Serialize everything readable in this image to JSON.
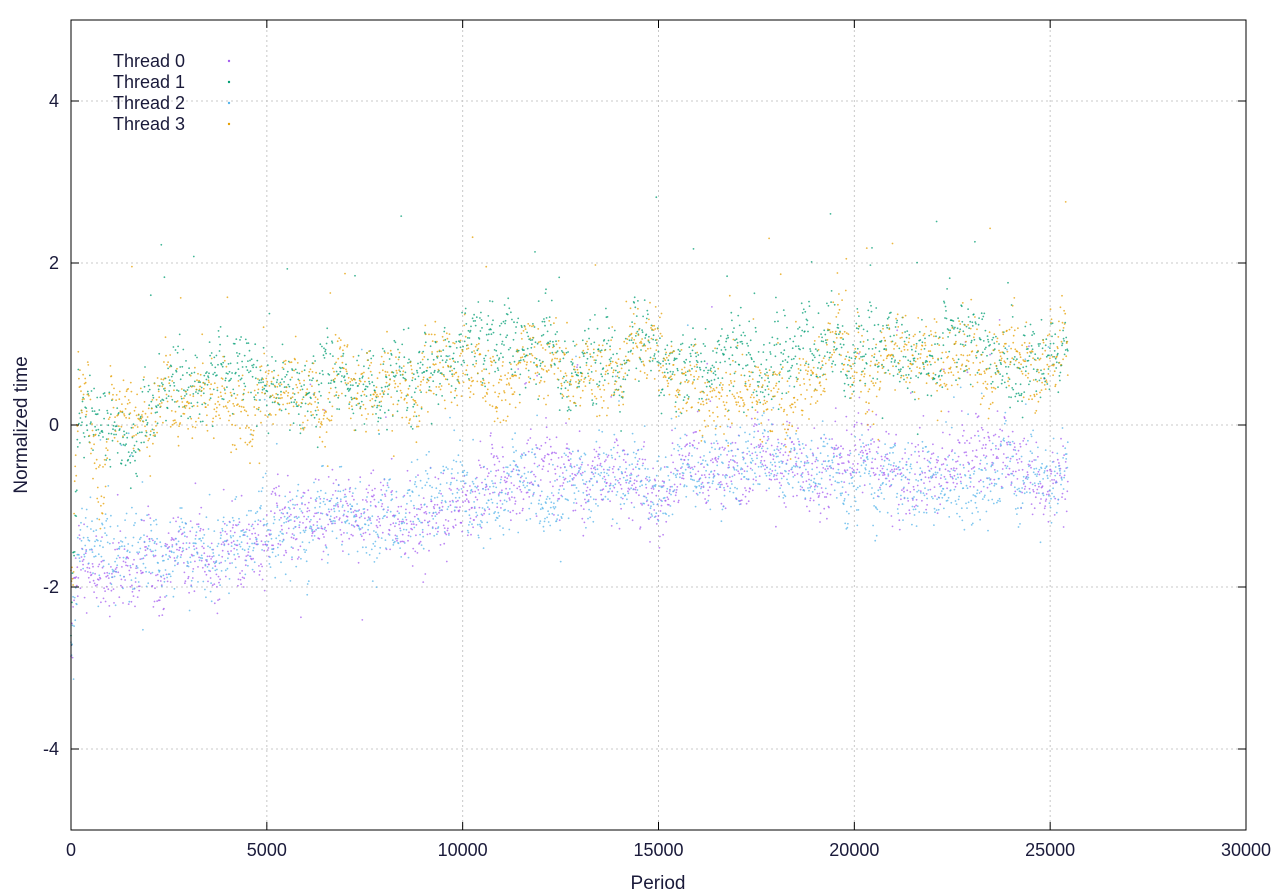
{
  "chart_data": {
    "type": "scatter",
    "title": "",
    "xlabel": "Period",
    "ylabel": "Normalized time",
    "xlim": [
      0,
      30000
    ],
    "ylim": [
      -5,
      5
    ],
    "xticks": [
      0,
      5000,
      10000,
      15000,
      20000,
      25000,
      30000
    ],
    "xtick_labels": [
      "0",
      "5000",
      "10000",
      "15000",
      "20000",
      "25000",
      "30000"
    ],
    "yticks": [
      -4,
      -2,
      0,
      2,
      4
    ],
    "ytick_labels": [
      "-4",
      "-2",
      "0",
      "2",
      "4"
    ],
    "grid": true,
    "legend_position": "top-left",
    "x_extent": [
      0,
      25450
    ],
    "series": [
      {
        "name": "Thread 0",
        "color": "#a55ef0",
        "trend": [
          [
            0,
            -2.8
          ],
          [
            100,
            -1.9
          ],
          [
            500,
            -1.8
          ],
          [
            1000,
            -1.9
          ],
          [
            2000,
            -1.7
          ],
          [
            3000,
            -1.5
          ],
          [
            4000,
            -1.5
          ],
          [
            5000,
            -1.3
          ],
          [
            6000,
            -1.2
          ],
          [
            7000,
            -1.2
          ],
          [
            8000,
            -1.0
          ],
          [
            9000,
            -1.2
          ],
          [
            10000,
            -1.0
          ],
          [
            11000,
            -0.8
          ],
          [
            12000,
            -0.7
          ],
          [
            13000,
            -0.6
          ],
          [
            14000,
            -0.7
          ],
          [
            15000,
            -0.9
          ],
          [
            16000,
            -0.4
          ],
          [
            17000,
            -0.6
          ],
          [
            18000,
            -0.4
          ],
          [
            19000,
            -0.5
          ],
          [
            20000,
            -0.2
          ],
          [
            21000,
            -0.6
          ],
          [
            22000,
            -0.4
          ],
          [
            23000,
            -0.4
          ],
          [
            24000,
            -0.3
          ],
          [
            25000,
            -0.7
          ],
          [
            25450,
            -0.7
          ]
        ]
      },
      {
        "name": "Thread 1",
        "color": "#009e73",
        "trend": [
          [
            0,
            -2.5
          ],
          [
            200,
            0.0
          ],
          [
            500,
            0.3
          ],
          [
            1000,
            -0.1
          ],
          [
            1500,
            -0.4
          ],
          [
            2000,
            0.2
          ],
          [
            2500,
            0.6
          ],
          [
            3000,
            0.4
          ],
          [
            4000,
            0.6
          ],
          [
            5000,
            0.5
          ],
          [
            6000,
            0.4
          ],
          [
            7000,
            0.6
          ],
          [
            8000,
            0.5
          ],
          [
            9000,
            0.8
          ],
          [
            10000,
            0.9
          ],
          [
            11000,
            1.0
          ],
          [
            12000,
            0.9
          ],
          [
            13000,
            0.8
          ],
          [
            14000,
            0.9
          ],
          [
            15000,
            0.9
          ],
          [
            16000,
            0.8
          ],
          [
            17000,
            0.8
          ],
          [
            18000,
            0.8
          ],
          [
            19000,
            0.9
          ],
          [
            20000,
            0.9
          ],
          [
            21000,
            1.0
          ],
          [
            22000,
            0.9
          ],
          [
            23000,
            0.9
          ],
          [
            24000,
            0.9
          ],
          [
            25000,
            0.9
          ],
          [
            25450,
            0.8
          ]
        ]
      },
      {
        "name": "Thread 2",
        "color": "#56b4e9",
        "trend": [
          [
            0,
            -2.9
          ],
          [
            150,
            -1.5
          ],
          [
            500,
            -1.6
          ],
          [
            1000,
            -1.6
          ],
          [
            2000,
            -1.6
          ],
          [
            3000,
            -1.5
          ],
          [
            4000,
            -1.6
          ],
          [
            5000,
            -1.3
          ],
          [
            6000,
            -1.2
          ],
          [
            7000,
            -1.0
          ],
          [
            8000,
            -1.1
          ],
          [
            9000,
            -1.0
          ],
          [
            10000,
            -0.9
          ],
          [
            11000,
            -0.8
          ],
          [
            12000,
            -0.7
          ],
          [
            13000,
            -0.7
          ],
          [
            14000,
            -0.6
          ],
          [
            15000,
            -0.8
          ],
          [
            16000,
            -0.5
          ],
          [
            17000,
            -0.5
          ],
          [
            18000,
            -0.6
          ],
          [
            19000,
            -0.5
          ],
          [
            20000,
            -0.5
          ],
          [
            21000,
            -0.5
          ],
          [
            22000,
            -0.6
          ],
          [
            23000,
            -0.5
          ],
          [
            24000,
            -0.5
          ],
          [
            25000,
            -0.6
          ],
          [
            25450,
            -0.6
          ]
        ]
      },
      {
        "name": "Thread 3",
        "color": "#e69f00",
        "trend": [
          [
            0,
            -2.2
          ],
          [
            200,
            0.4
          ],
          [
            400,
            0.6
          ],
          [
            800,
            -1.0
          ],
          [
            1000,
            0.3
          ],
          [
            1500,
            0.0
          ],
          [
            2000,
            -0.2
          ],
          [
            2500,
            0.5
          ],
          [
            3000,
            0.2
          ],
          [
            4000,
            0.4
          ],
          [
            4500,
            0.0
          ],
          [
            5000,
            0.4
          ],
          [
            6000,
            0.6
          ],
          [
            6500,
            0.0
          ],
          [
            7000,
            0.7
          ],
          [
            8000,
            0.4
          ],
          [
            8500,
            0.3
          ],
          [
            9000,
            0.7
          ],
          [
            10000,
            0.7
          ],
          [
            11000,
            0.6
          ],
          [
            12000,
            0.8
          ],
          [
            13000,
            0.7
          ],
          [
            14000,
            0.6
          ],
          [
            14500,
            1.1
          ],
          [
            15000,
            0.9
          ],
          [
            15500,
            0.4
          ],
          [
            16000,
            0.4
          ],
          [
            17000,
            0.4
          ],
          [
            18000,
            0.3
          ],
          [
            19000,
            0.5
          ],
          [
            19500,
            1.4
          ],
          [
            20000,
            0.8
          ],
          [
            20500,
            0.5
          ],
          [
            21000,
            1.0
          ],
          [
            22000,
            0.9
          ],
          [
            23000,
            1.0
          ],
          [
            24000,
            0.7
          ],
          [
            25000,
            0.8
          ],
          [
            25450,
            0.7
          ]
        ]
      }
    ]
  }
}
